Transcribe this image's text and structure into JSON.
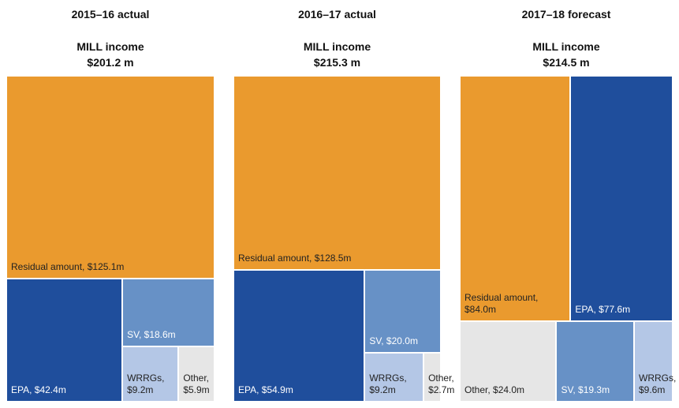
{
  "chart_data": [
    {
      "type": "treemap",
      "title": "2015–16 actual",
      "subtitle": "MILL income",
      "total": 201.2,
      "total_label": "$201.2 m",
      "labels": [
        "Residual amount, $125.1m",
        "EPA, $42.4m",
        "SV, $18.6m",
        "WRRGs, $9.2m",
        "Other, $5.9m"
      ],
      "values": [
        125.1,
        42.4,
        18.6,
        9.2,
        5.9
      ],
      "colors": [
        "#ea9a2e",
        "#1f4e9c",
        "#6791c6",
        "#b4c7e6",
        "#e6e6e6"
      ]
    },
    {
      "type": "treemap",
      "title": "2016–17 actual",
      "subtitle": "MILL income",
      "total": 215.3,
      "total_label": "$215.3 m",
      "labels": [
        "Residual amount, $128.5m",
        "EPA, $54.9m",
        "SV, $20.0m",
        "WRRGs, $9.2m",
        "Other, $2.7m"
      ],
      "values": [
        128.5,
        54.9,
        20.0,
        9.2,
        2.7
      ],
      "colors": [
        "#ea9a2e",
        "#1f4e9c",
        "#6791c6",
        "#b4c7e6",
        "#e6e6e6"
      ]
    },
    {
      "type": "treemap",
      "title": "2017–18 forecast",
      "subtitle": "MILL income",
      "total": 214.5,
      "total_label": "$214.5 m",
      "labels": [
        "Residual amount, $84.0m",
        "EPA, $77.6m",
        "Other, $24.0m",
        "SV, $19.3m",
        "WRRGs, $9.6m"
      ],
      "values": [
        84.0,
        77.6,
        24.0,
        19.3,
        9.6
      ],
      "colors": [
        "#ea9a2e",
        "#1f4e9c",
        "#e6e6e6",
        "#6791c6",
        "#b4c7e6"
      ]
    }
  ]
}
